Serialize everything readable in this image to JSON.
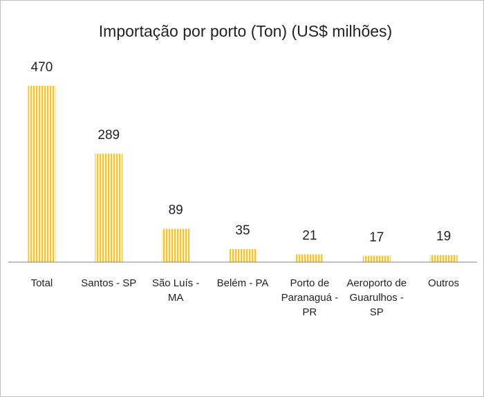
{
  "chart_data": {
    "type": "bar",
    "title": "Importação por porto (Ton) (US$ milhões)",
    "categories": [
      "Total",
      "Santos - SP",
      "São Luís - MA",
      "Belém - PA",
      "Porto de Paranaguá - PR",
      "Aeroporto de Guarulhos - SP",
      "Outros"
    ],
    "values": [
      470,
      289,
      89,
      35,
      21,
      17,
      19
    ],
    "color": "#f2c443"
  }
}
